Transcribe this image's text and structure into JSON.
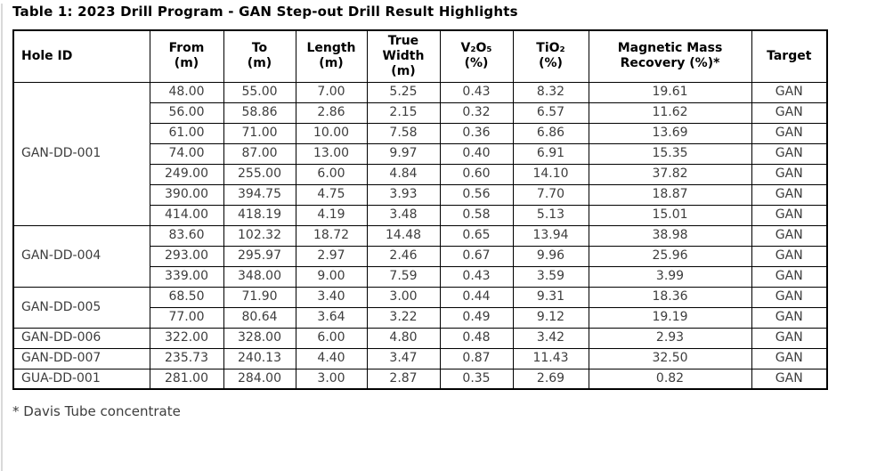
{
  "page": {
    "title": "Table 1: 2023 Drill Program - GAN Step-out Drill Result Highlights",
    "footnote": "* Davis Tube concentrate"
  },
  "table": {
    "headers": [
      "Hole ID",
      "From\n(m)",
      "To\n(m)",
      "Length\n(m)",
      "True\nWidth\n(m)",
      "V₂O₅\n(%)",
      "TiO₂\n(%)",
      "Magnetic Mass\nRecovery (%)*",
      "Target"
    ],
    "groups": [
      {
        "hole_id": "GAN-DD-001",
        "rows": [
          [
            "48.00",
            "55.00",
            "7.00",
            "5.25",
            "0.43",
            "8.32",
            "19.61",
            "GAN"
          ],
          [
            "56.00",
            "58.86",
            "2.86",
            "2.15",
            "0.32",
            "6.57",
            "11.62",
            "GAN"
          ],
          [
            "61.00",
            "71.00",
            "10.00",
            "7.58",
            "0.36",
            "6.86",
            "13.69",
            "GAN"
          ],
          [
            "74.00",
            "87.00",
            "13.00",
            "9.97",
            "0.40",
            "6.91",
            "15.35",
            "GAN"
          ],
          [
            "249.00",
            "255.00",
            "6.00",
            "4.84",
            "0.60",
            "14.10",
            "37.82",
            "GAN"
          ],
          [
            "390.00",
            "394.75",
            "4.75",
            "3.93",
            "0.56",
            "7.70",
            "18.87",
            "GAN"
          ],
          [
            "414.00",
            "418.19",
            "4.19",
            "3.48",
            "0.58",
            "5.13",
            "15.01",
            "GAN"
          ]
        ]
      },
      {
        "hole_id": "GAN-DD-004",
        "rows": [
          [
            "83.60",
            "102.32",
            "18.72",
            "14.48",
            "0.65",
            "13.94",
            "38.98",
            "GAN"
          ],
          [
            "293.00",
            "295.97",
            "2.97",
            "2.46",
            "0.67",
            "9.96",
            "25.96",
            "GAN"
          ],
          [
            "339.00",
            "348.00",
            "9.00",
            "7.59",
            "0.43",
            "3.59",
            "3.99",
            "GAN"
          ]
        ]
      },
      {
        "hole_id": "GAN-DD-005",
        "rows": [
          [
            "68.50",
            "71.90",
            "3.40",
            "3.00",
            "0.44",
            "9.31",
            "18.36",
            "GAN"
          ],
          [
            "77.00",
            "80.64",
            "3.64",
            "3.22",
            "0.49",
            "9.12",
            "19.19",
            "GAN"
          ]
        ]
      },
      {
        "hole_id": "GAN-DD-006",
        "rows": [
          [
            "322.00",
            "328.00",
            "6.00",
            "4.80",
            "0.48",
            "3.42",
            "2.93",
            "GAN"
          ]
        ]
      },
      {
        "hole_id": "GAN-DD-007",
        "rows": [
          [
            "235.73",
            "240.13",
            "4.40",
            "3.47",
            "0.87",
            "11.43",
            "32.50",
            "GAN"
          ]
        ]
      },
      {
        "hole_id": "GUA-DD-001",
        "rows": [
          [
            "281.00",
            "284.00",
            "3.00",
            "2.87",
            "0.35",
            "2.69",
            "0.82",
            "GAN"
          ]
        ]
      }
    ]
  }
}
